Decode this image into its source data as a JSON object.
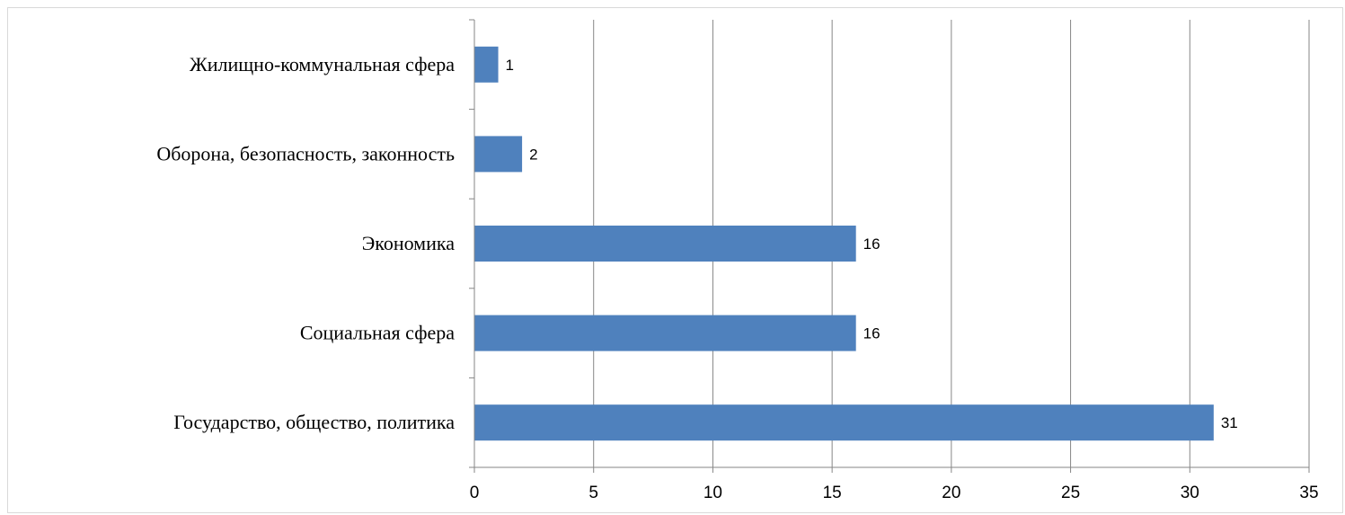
{
  "chart_data": {
    "type": "bar",
    "orientation": "horizontal",
    "categories": [
      "Государство, общество, политика",
      "Социальная сфера",
      "Экономика",
      "Оборона, безопасность, законность",
      "Жилищно-коммунальная сфера"
    ],
    "values": [
      31,
      16,
      16,
      2,
      1
    ],
    "data_labels": [
      "31",
      "16",
      "16",
      "2",
      "1"
    ],
    "xlim": [
      0,
      35
    ],
    "x_ticks": [
      0,
      5,
      10,
      15,
      20,
      25,
      30,
      35
    ],
    "x_tick_labels": [
      "0",
      "5",
      "10",
      "15",
      "20",
      "25",
      "30",
      "35"
    ],
    "title": "",
    "xlabel": "",
    "ylabel": "",
    "grid": "vertical",
    "legend": "none",
    "bar_color": "#4f81bd",
    "grid_color": "#868686"
  }
}
